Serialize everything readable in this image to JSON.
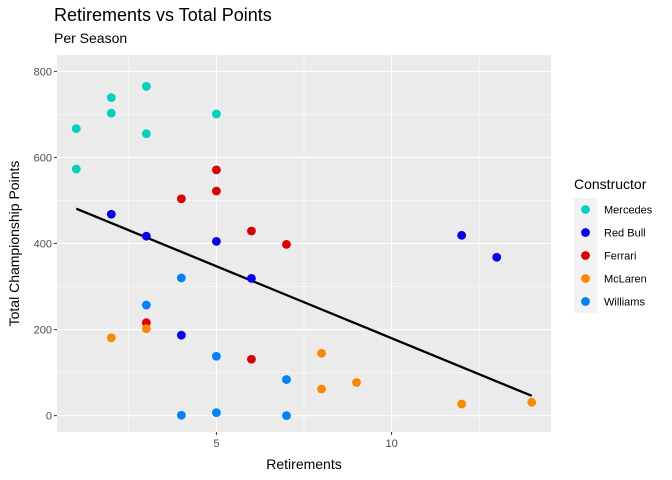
{
  "chart_data": {
    "type": "scatter",
    "title": "Retirements vs Total Points",
    "subtitle": "Per Season",
    "xlabel": "Retirements",
    "ylabel": "Total Championship Points",
    "xlim": [
      0.45,
      14.55
    ],
    "ylim": [
      -38,
      838
    ],
    "x_ticks": [
      5,
      10
    ],
    "x_minor_ticks": [
      2.5,
      7.5,
      12.5
    ],
    "y_ticks": [
      0,
      200,
      400,
      600,
      800
    ],
    "y_minor_ticks": [
      100,
      300,
      500,
      700
    ],
    "grid": true,
    "legend": {
      "title": "Constructor",
      "position": "right"
    },
    "series": [
      {
        "name": "Mercedes",
        "color": "#00d2be",
        "points": [
          [
            1,
            667
          ],
          [
            1,
            573
          ],
          [
            2,
            739
          ],
          [
            2,
            703
          ],
          [
            3,
            765
          ],
          [
            3,
            655
          ],
          [
            5,
            701
          ]
        ]
      },
      {
        "name": "Red Bull",
        "color": "#0600ef",
        "points": [
          [
            2,
            468
          ],
          [
            3,
            417
          ],
          [
            4,
            187
          ],
          [
            5,
            405
          ],
          [
            6,
            319
          ],
          [
            12,
            419
          ],
          [
            13,
            368
          ]
        ]
      },
      {
        "name": "Ferrari",
        "color": "#dc0000",
        "points": [
          [
            3,
            216
          ],
          [
            4,
            504
          ],
          [
            5,
            571
          ],
          [
            5,
            522
          ],
          [
            6,
            429
          ],
          [
            6,
            131
          ],
          [
            7,
            398
          ]
        ]
      },
      {
        "name": "McLaren",
        "color": "#ff8700",
        "points": [
          [
            2,
            181
          ],
          [
            3,
            202
          ],
          [
            8,
            145
          ],
          [
            8,
            62
          ],
          [
            9,
            77
          ],
          [
            12,
            27
          ],
          [
            14,
            31
          ]
        ]
      },
      {
        "name": "Williams",
        "color": "#0082fa",
        "points": [
          [
            3,
            257
          ],
          [
            4,
            320
          ],
          [
            4,
            1
          ],
          [
            5,
            138
          ],
          [
            5,
            7
          ],
          [
            7,
            84
          ],
          [
            7,
            0
          ]
        ]
      }
    ],
    "trend_line": {
      "color": "#000000",
      "from": [
        1,
        481
      ],
      "to": [
        14,
        46
      ]
    }
  }
}
